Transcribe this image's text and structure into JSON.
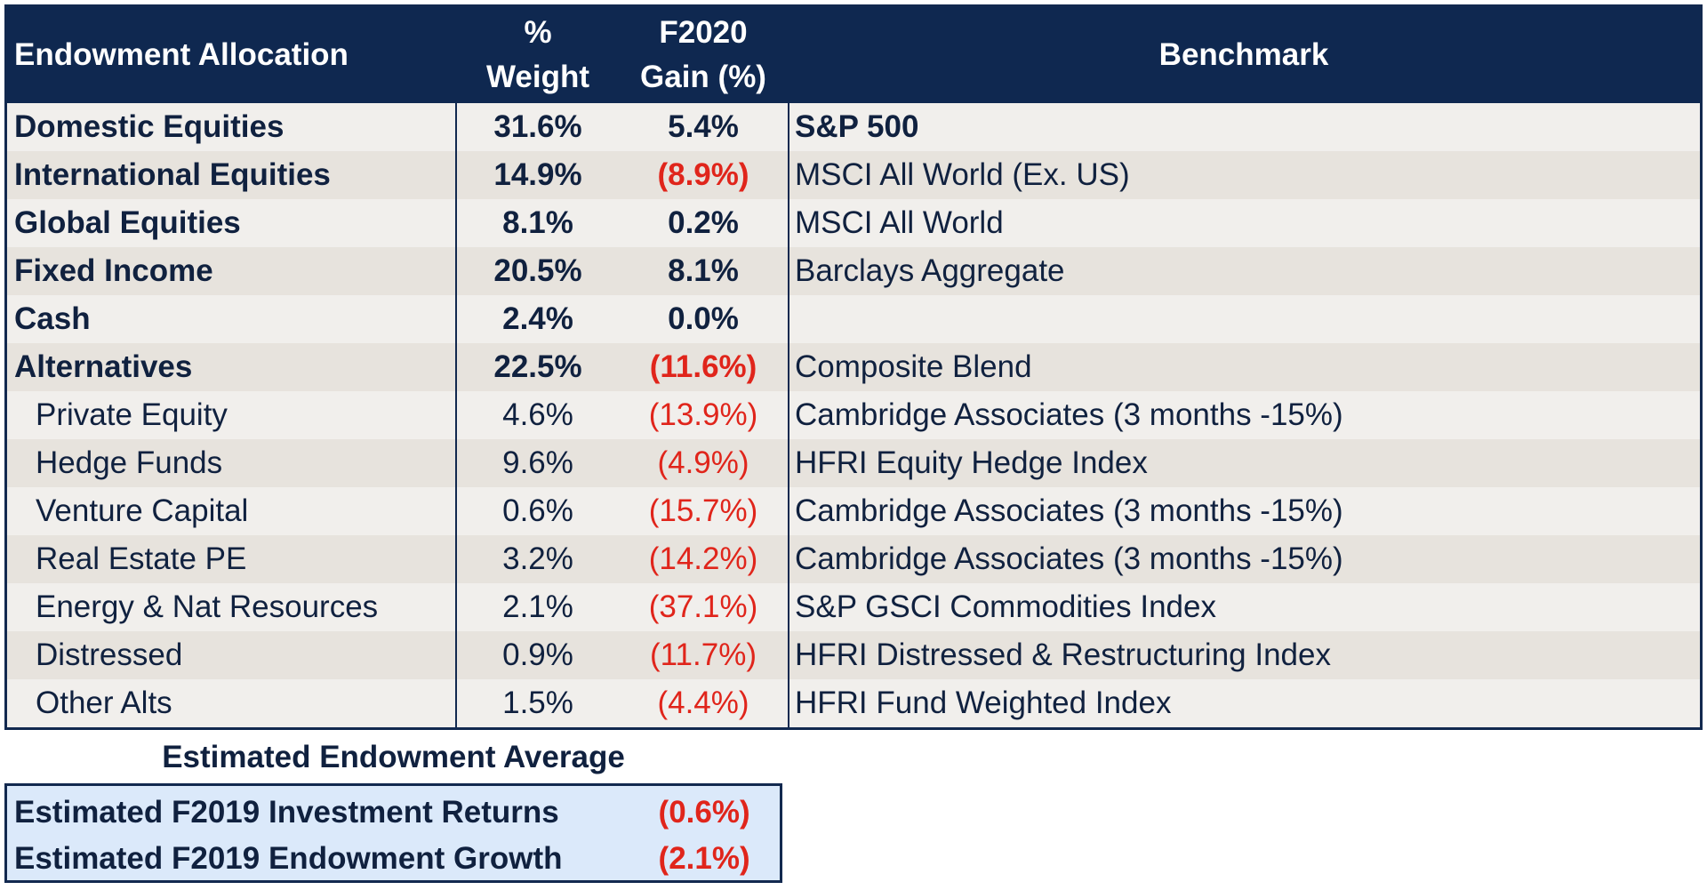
{
  "table": {
    "headers": {
      "allocation": "Endowment Allocation",
      "weight_line1": "%",
      "weight_line2": "Weight",
      "gain_line1": "F2020",
      "gain_line2": "Gain (%)",
      "benchmark": "Benchmark"
    },
    "rows": [
      {
        "name": "Domestic Equities",
        "weight": "31.6%",
        "gain": "5.4%",
        "benchmark": "S&P 500"
      },
      {
        "name": "International Equities",
        "weight": "14.9%",
        "gain": "(8.9%)",
        "benchmark": "MSCI All World (Ex. US)"
      },
      {
        "name": "Global Equities",
        "weight": "8.1%",
        "gain": "0.2%",
        "benchmark": "MSCI All World"
      },
      {
        "name": "Fixed Income",
        "weight": "20.5%",
        "gain": "8.1%",
        "benchmark": "Barclays Aggregate"
      },
      {
        "name": "Cash",
        "weight": "2.4%",
        "gain": "0.0%",
        "benchmark": ""
      },
      {
        "name": "Alternatives",
        "weight": "22.5%",
        "gain": "(11.6%)",
        "benchmark": "Composite Blend"
      },
      {
        "name": "Private Equity",
        "weight": "4.6%",
        "gain": "(13.9%)",
        "benchmark": "Cambridge Associates (3 months -15%)"
      },
      {
        "name": "Hedge Funds",
        "weight": "9.6%",
        "gain": "(4.9%)",
        "benchmark": "HFRI Equity Hedge Index"
      },
      {
        "name": "Venture Capital",
        "weight": "0.6%",
        "gain": "(15.7%)",
        "benchmark": "Cambridge Associates (3 months -15%)"
      },
      {
        "name": "Real Estate PE",
        "weight": "3.2%",
        "gain": "(14.2%)",
        "benchmark": "Cambridge Associates (3 months -15%)"
      },
      {
        "name": "Energy & Nat Resources",
        "weight": "2.1%",
        "gain": "(37.1%)",
        "benchmark": "S&P GSCI Commodities Index"
      },
      {
        "name": "Distressed",
        "weight": "0.9%",
        "gain": "(11.7%)",
        "benchmark": "HFRI Distressed & Restructuring Index"
      },
      {
        "name": "Other Alts",
        "weight": "1.5%",
        "gain": "(4.4%)",
        "benchmark": "HFRI Fund Weighted Index"
      }
    ]
  },
  "summary": {
    "title": "Estimated Endowment Average",
    "rows": [
      {
        "label": "Estimated F2019 Investment Returns",
        "value": "(0.6%)"
      },
      {
        "label": "Estimated F2019 Endowment Growth",
        "value": "(2.1%)"
      }
    ]
  },
  "colors": {
    "header_bg": "#0f2850",
    "row_light": "#f1efec",
    "row_dark": "#e7e3dd",
    "negative": "#e0251b",
    "summary_bg": "#dbe9fa"
  }
}
